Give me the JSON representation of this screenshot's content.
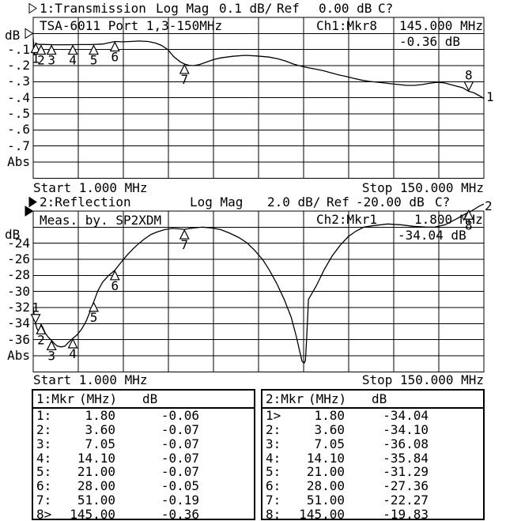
{
  "colors": {
    "foreground": "#000000",
    "background": "#ffffff"
  },
  "start_label": "Start 1.000 MHz",
  "stop_label": "Stop 150.000 MHz",
  "chart_data": [
    {
      "type": "line",
      "title": "1:Transmission",
      "channel_active": false,
      "format": "Log Mag",
      "scale": "0.1 dB/",
      "ref_label": "Ref",
      "ref_value": "0.00 dB",
      "cal_status": "C?",
      "trace_number": "1",
      "y_unit": "dB",
      "abs_label": "Abs",
      "ref_db": 0.0,
      "db_per_div": 0.1,
      "divisions": 10,
      "x_range_mhz": [
        1,
        150
      ],
      "ytick_labels": [
        "-.1",
        "-.2",
        "-.3",
        "-.4",
        "-.5",
        "-.6",
        "-.7"
      ],
      "info": {
        "comment": "TSA-6011 Port 1,3-150MHz",
        "marker_readout": "Ch1:Mkr8",
        "marker_freq": "145.000 MHz",
        "marker_value": "-0.36 dB"
      },
      "start": "Start 1.000 MHz",
      "stop": "Stop 150.000 MHz",
      "markers": [
        {
          "n": "1",
          "mhz": 1.8,
          "db": -0.06,
          "dir": "below"
        },
        {
          "n": "2",
          "mhz": 3.6,
          "db": -0.07,
          "dir": "below"
        },
        {
          "n": "3",
          "mhz": 7.05,
          "db": -0.07,
          "dir": "below"
        },
        {
          "n": "4",
          "mhz": 14.1,
          "db": -0.07,
          "dir": "below"
        },
        {
          "n": "5",
          "mhz": 21.0,
          "db": -0.07,
          "dir": "below"
        },
        {
          "n": "6",
          "mhz": 28.0,
          "db": -0.05,
          "dir": "below"
        },
        {
          "n": "7",
          "mhz": 51.0,
          "db": -0.19,
          "dir": "below"
        },
        {
          "n": "8",
          "mhz": 145.0,
          "db": -0.36,
          "dir": "above"
        }
      ],
      "trace": [
        [
          1.0,
          -0.03
        ],
        [
          1.2,
          -0.08
        ],
        [
          1.4,
          -0.135
        ],
        [
          1.6,
          -0.1
        ],
        [
          1.8,
          -0.06
        ],
        [
          2.2,
          -0.065
        ],
        [
          3.0,
          -0.068
        ],
        [
          4.4,
          -0.068
        ],
        [
          8.0,
          -0.07
        ],
        [
          12.0,
          -0.07
        ],
        [
          16.0,
          -0.069
        ],
        [
          20.0,
          -0.069
        ],
        [
          24.0,
          -0.066
        ],
        [
          28.0,
          -0.05
        ],
        [
          30.5,
          -0.052
        ],
        [
          33.0,
          -0.05
        ],
        [
          36.0,
          -0.047
        ],
        [
          39.0,
          -0.05
        ],
        [
          41.5,
          -0.06
        ],
        [
          43.5,
          -0.075
        ],
        [
          45.5,
          -0.1
        ],
        [
          47.5,
          -0.145
        ],
        [
          49.5,
          -0.175
        ],
        [
          51.0,
          -0.19
        ],
        [
          52.5,
          -0.198
        ],
        [
          54.0,
          -0.2
        ],
        [
          56.0,
          -0.193
        ],
        [
          58.0,
          -0.18
        ],
        [
          60.5,
          -0.163
        ],
        [
          63.0,
          -0.152
        ],
        [
          67.0,
          -0.142
        ],
        [
          71.0,
          -0.136
        ],
        [
          75.0,
          -0.14
        ],
        [
          79.0,
          -0.147
        ],
        [
          82.0,
          -0.158
        ],
        [
          84.5,
          -0.172
        ],
        [
          87.0,
          -0.19
        ],
        [
          89.5,
          -0.203
        ],
        [
          92.0,
          -0.214
        ],
        [
          94.5,
          -0.222
        ],
        [
          97.0,
          -0.232
        ],
        [
          99.5,
          -0.245
        ],
        [
          102.0,
          -0.258
        ],
        [
          104.5,
          -0.268
        ],
        [
          107.0,
          -0.279
        ],
        [
          109.5,
          -0.29
        ],
        [
          112.0,
          -0.298
        ],
        [
          114.5,
          -0.303
        ],
        [
          117.0,
          -0.308
        ],
        [
          119.5,
          -0.313
        ],
        [
          122.0,
          -0.318
        ],
        [
          124.5,
          -0.323
        ],
        [
          127.0,
          -0.323
        ],
        [
          129.5,
          -0.318
        ],
        [
          132.0,
          -0.31
        ],
        [
          134.5,
          -0.304
        ],
        [
          137.0,
          -0.308
        ],
        [
          139.0,
          -0.318
        ],
        [
          141.0,
          -0.328
        ],
        [
          143.0,
          -0.338
        ],
        [
          145.0,
          -0.36
        ],
        [
          146.5,
          -0.368
        ],
        [
          148.0,
          -0.382
        ],
        [
          149.2,
          -0.395
        ],
        [
          150.0,
          -0.405
        ]
      ]
    },
    {
      "type": "line",
      "title": "2:Reflection",
      "channel_active": true,
      "format": "Log Mag",
      "scale": "2.0 dB/",
      "ref_label": "Ref",
      "ref_value": "-20.00 dB",
      "cal_status": "C?",
      "trace_number": "2",
      "y_unit": "dB",
      "abs_label": "Abs",
      "ref_db": -20.0,
      "db_per_div": 2.0,
      "divisions": 10,
      "x_range_mhz": [
        1,
        150
      ],
      "ytick_labels": [
        "-24",
        "-26",
        "-28",
        "-30",
        "-32",
        "-34",
        "-36"
      ],
      "info": {
        "comment": "Meas. by. SP2XDM",
        "marker_readout": "Ch2:Mkr1",
        "marker_freq": "1.800 MHz",
        "marker_value": "-34.04 dB"
      },
      "start": "Start 1.000 MHz",
      "stop": "Stop 150.000 MHz",
      "markers": [
        {
          "n": "1",
          "mhz": 1.8,
          "db": -34.04,
          "dir": "above"
        },
        {
          "n": "2",
          "mhz": 3.6,
          "db": -34.1,
          "dir": "below"
        },
        {
          "n": "3",
          "mhz": 7.05,
          "db": -36.08,
          "dir": "below"
        },
        {
          "n": "4",
          "mhz": 14.1,
          "db": -35.84,
          "dir": "below"
        },
        {
          "n": "5",
          "mhz": 21.0,
          "db": -31.29,
          "dir": "below"
        },
        {
          "n": "6",
          "mhz": 28.0,
          "db": -27.36,
          "dir": "below"
        },
        {
          "n": "7",
          "mhz": 51.0,
          "db": -22.27,
          "dir": "below"
        },
        {
          "n": "8",
          "mhz": 145.0,
          "db": -19.83,
          "dir": "below"
        }
      ],
      "trace": [
        [
          1.0,
          -31.9
        ],
        [
          1.3,
          -32.8
        ],
        [
          1.8,
          -34.04
        ],
        [
          2.2,
          -34.6
        ],
        [
          2.7,
          -34.9
        ],
        [
          3.2,
          -34.6
        ],
        [
          3.6,
          -34.1
        ],
        [
          4.2,
          -34.5
        ],
        [
          5.0,
          -35.2
        ],
        [
          6.0,
          -35.7
        ],
        [
          7.05,
          -36.08
        ],
        [
          8.0,
          -36.5
        ],
        [
          9.0,
          -36.8
        ],
        [
          10.3,
          -36.9
        ],
        [
          11.5,
          -36.8
        ],
        [
          12.5,
          -36.4
        ],
        [
          14.1,
          -35.84
        ],
        [
          15.5,
          -35.4
        ],
        [
          17.0,
          -34.7
        ],
        [
          18.5,
          -33.7
        ],
        [
          19.8,
          -32.5
        ],
        [
          21.0,
          -31.29
        ],
        [
          22.4,
          -29.9
        ],
        [
          24.0,
          -28.8
        ],
        [
          26.0,
          -28.0
        ],
        [
          28.0,
          -27.36
        ],
        [
          30.0,
          -26.4
        ],
        [
          32.0,
          -25.5
        ],
        [
          34.0,
          -24.7
        ],
        [
          36.0,
          -24.0
        ],
        [
          38.0,
          -23.4
        ],
        [
          40.0,
          -22.9
        ],
        [
          42.0,
          -22.6
        ],
        [
          44.5,
          -22.3
        ],
        [
          47.0,
          -22.15
        ],
        [
          49.0,
          -22.2
        ],
        [
          51.0,
          -22.27
        ],
        [
          54.0,
          -22.1
        ],
        [
          57.0,
          -22.0
        ],
        [
          60.0,
          -22.1
        ],
        [
          63.0,
          -22.3
        ],
        [
          66.0,
          -22.75
        ],
        [
          69.0,
          -23.3
        ],
        [
          71.5,
          -23.9
        ],
        [
          74.0,
          -24.8
        ],
        [
          76.8,
          -26.0
        ],
        [
          79.0,
          -27.3
        ],
        [
          81.5,
          -29.0
        ],
        [
          84.0,
          -31.0
        ],
        [
          86.3,
          -33.2
        ],
        [
          88.0,
          -35.6
        ],
        [
          89.2,
          -37.6
        ],
        [
          89.9,
          -38.7
        ],
        [
          90.6,
          -38.9
        ],
        [
          91.0,
          -38.6
        ],
        [
          91.4,
          -36.0
        ],
        [
          91.7,
          -33.5
        ],
        [
          92.0,
          -31.0
        ],
        [
          94.6,
          -29.3
        ],
        [
          97.2,
          -27.3
        ],
        [
          99.8,
          -25.6
        ],
        [
          102.4,
          -24.3
        ],
        [
          105.1,
          -23.2
        ],
        [
          107.7,
          -22.5
        ],
        [
          110.3,
          -22.0
        ],
        [
          113.7,
          -21.8
        ],
        [
          118.1,
          -21.6
        ],
        [
          122.5,
          -21.7
        ],
        [
          126.7,
          -21.9
        ],
        [
          131.2,
          -22.0
        ],
        [
          133.8,
          -22.0
        ],
        [
          137.2,
          -21.7
        ],
        [
          140.8,
          -21.0
        ],
        [
          142.7,
          -20.6
        ],
        [
          144.2,
          -20.3
        ],
        [
          145.8,
          -20.0
        ],
        [
          147.1,
          -19.7
        ],
        [
          148.4,
          -19.4
        ],
        [
          150.0,
          -19.1
        ]
      ]
    }
  ],
  "marker_tables": {
    "left": {
      "title": "1:Mkr",
      "freq_header": "(MHz)",
      "db_header": "dB",
      "rows": [
        [
          "1:",
          "1.80",
          "-0.06"
        ],
        [
          "2:",
          "3.60",
          "-0.07"
        ],
        [
          "3:",
          "7.05",
          "-0.07"
        ],
        [
          "4:",
          "14.10",
          "-0.07"
        ],
        [
          "5:",
          "21.00",
          "-0.07"
        ],
        [
          "6:",
          "28.00",
          "-0.05"
        ],
        [
          "7:",
          "51.00",
          "-0.19"
        ],
        [
          "8>",
          "145.00",
          "-0.36"
        ]
      ]
    },
    "right": {
      "title": "2:Mkr",
      "freq_header": "(MHz)",
      "db_header": "dB",
      "rows": [
        [
          "1>",
          "1.80",
          "-34.04"
        ],
        [
          "2:",
          "3.60",
          "-34.10"
        ],
        [
          "3:",
          "7.05",
          "-36.08"
        ],
        [
          "4:",
          "14.10",
          "-35.84"
        ],
        [
          "5:",
          "21.00",
          "-31.29"
        ],
        [
          "6:",
          "28.00",
          "-27.36"
        ],
        [
          "7:",
          "51.00",
          "-22.27"
        ],
        [
          "8:",
          "145.00",
          "-19.83"
        ]
      ]
    }
  }
}
